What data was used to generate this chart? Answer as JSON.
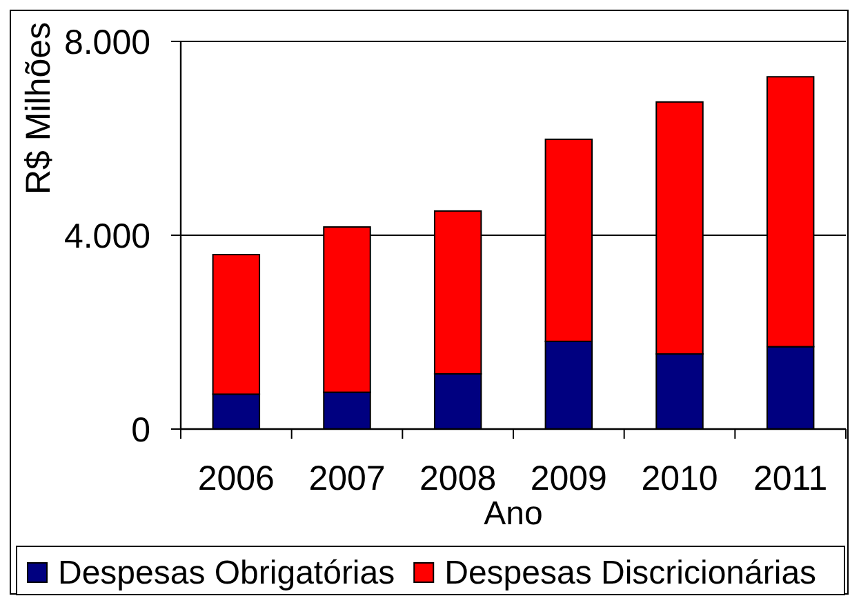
{
  "chart_data": {
    "type": "bar",
    "categories": [
      "2006",
      "2007",
      "2008",
      "2009",
      "2010",
      "2011"
    ],
    "stacked": true,
    "series": [
      {
        "name": "Despesas Obrigatórias",
        "color": "#000080",
        "values": [
          720,
          760,
          1140,
          1810,
          1550,
          1700
        ]
      },
      {
        "name": "Despesas Discricionárias",
        "color": "#ff0000",
        "values": [
          2880,
          3410,
          3360,
          4170,
          5200,
          5570
        ]
      }
    ],
    "xlabel": "Ano",
    "ylabel": "R$ Milhões",
    "ylim": [
      0,
      8000
    ],
    "yticks": [
      0,
      {
        "value": 4000,
        "label": "4.000"
      },
      {
        "value": 8000,
        "label": "8.000"
      }
    ],
    "grid": "y",
    "legend": "bottom"
  }
}
